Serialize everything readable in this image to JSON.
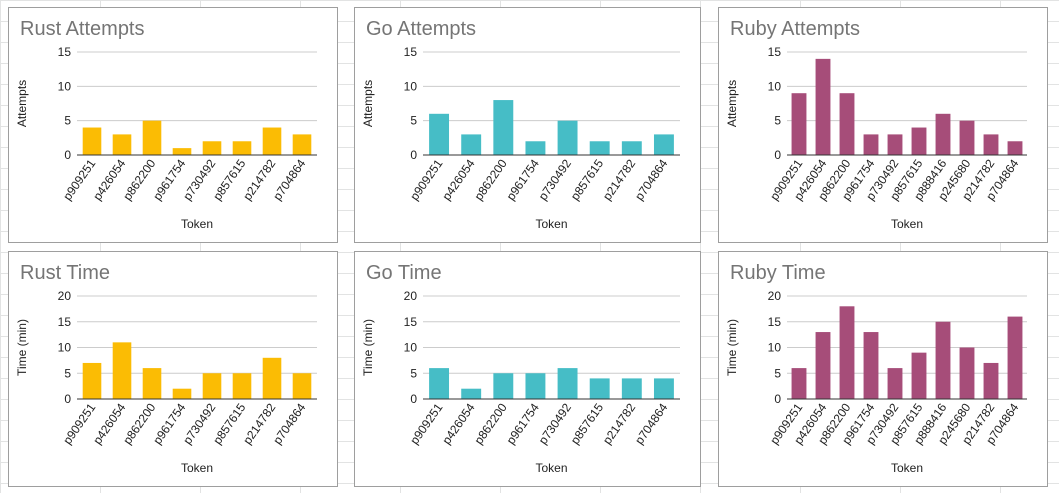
{
  "chart_data": [
    {
      "type": "bar",
      "title": "Rust Attempts",
      "xlabel": "Token",
      "ylabel": "Attempts",
      "categories": [
        "p909251",
        "p426054",
        "p862200",
        "p961754",
        "p730492",
        "p857615",
        "p214782",
        "p704864"
      ],
      "values": [
        4,
        3,
        5,
        1,
        2,
        2,
        4,
        3
      ],
      "ylim": [
        0,
        15
      ],
      "yticks": [
        0,
        5,
        10,
        15
      ],
      "color": "#fbbc04",
      "grid": true,
      "legend": "none"
    },
    {
      "type": "bar",
      "title": "Go Attempts",
      "xlabel": "Token",
      "ylabel": "Attempts",
      "categories": [
        "p909251",
        "p426054",
        "p862200",
        "p961754",
        "p730492",
        "p857615",
        "p214782",
        "p704864"
      ],
      "values": [
        6,
        3,
        8,
        2,
        5,
        2,
        2,
        3
      ],
      "ylim": [
        0,
        15
      ],
      "yticks": [
        0,
        5,
        10,
        15
      ],
      "color": "#46bdc6",
      "grid": true,
      "legend": "none"
    },
    {
      "type": "bar",
      "title": "Ruby Attempts",
      "xlabel": "Token",
      "ylabel": "Attempts",
      "categories": [
        "p909251",
        "p426054",
        "p862200",
        "p961754",
        "p730492",
        "p857615",
        "p888416",
        "p245680",
        "p214782",
        "p704864"
      ],
      "values": [
        9,
        14,
        9,
        3,
        3,
        4,
        6,
        5,
        3,
        2
      ],
      "ylim": [
        0,
        15
      ],
      "yticks": [
        0,
        5,
        10,
        15
      ],
      "color": "#a64d79",
      "grid": true,
      "legend": "none"
    },
    {
      "type": "bar",
      "title": "Rust Time",
      "xlabel": "Token",
      "ylabel": "Time (min)",
      "categories": [
        "p909251",
        "p426054",
        "p862200",
        "p961754",
        "p730492",
        "p857615",
        "p214782",
        "p704864"
      ],
      "values": [
        7,
        11,
        6,
        2,
        5,
        5,
        8,
        5
      ],
      "ylim": [
        0,
        20
      ],
      "yticks": [
        0,
        5,
        10,
        15,
        20
      ],
      "color": "#fbbc04",
      "grid": true,
      "legend": "none"
    },
    {
      "type": "bar",
      "title": "Go Time",
      "xlabel": "Token",
      "ylabel": "Time (min)",
      "categories": [
        "p909251",
        "p426054",
        "p862200",
        "p961754",
        "p730492",
        "p857615",
        "p214782",
        "p704864"
      ],
      "values": [
        6,
        2,
        5,
        5,
        6,
        4,
        4,
        4
      ],
      "ylim": [
        0,
        20
      ],
      "yticks": [
        0,
        5,
        10,
        15,
        20
      ],
      "color": "#46bdc6",
      "grid": true,
      "legend": "none"
    },
    {
      "type": "bar",
      "title": "Ruby Time",
      "xlabel": "Token",
      "ylabel": "Time (min)",
      "categories": [
        "p909251",
        "p426054",
        "p862200",
        "p961754",
        "p730492",
        "p857615",
        "p888416",
        "p245680",
        "p214782",
        "p704864"
      ],
      "values": [
        6,
        13,
        18,
        13,
        6,
        9,
        15,
        10,
        7,
        16
      ],
      "ylim": [
        0,
        20
      ],
      "yticks": [
        0,
        5,
        10,
        15,
        20
      ],
      "color": "#a64d79",
      "grid": true,
      "legend": "none"
    }
  ]
}
